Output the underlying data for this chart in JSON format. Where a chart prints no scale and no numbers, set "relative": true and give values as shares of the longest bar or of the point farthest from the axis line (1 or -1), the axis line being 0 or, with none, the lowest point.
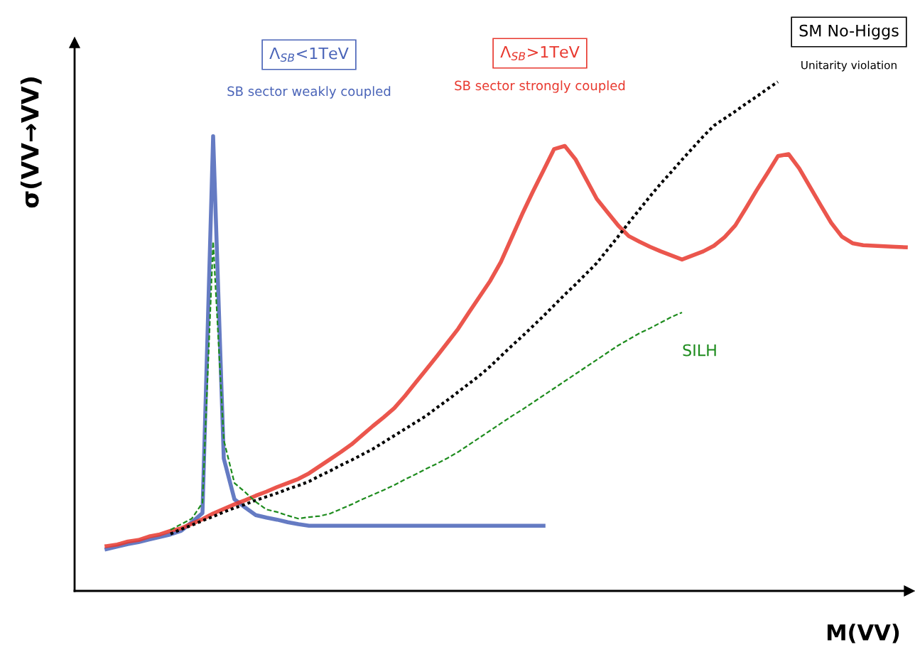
{
  "chart_data": {
    "type": "line",
    "relative": true,
    "xlabel": "M(VV)",
    "ylabel": "σ(VV→VV)",
    "categories": [
      null,
      null,
      null,
      null,
      null,
      null,
      null,
      null,
      null,
      null,
      null,
      null,
      null,
      null,
      null,
      null,
      null,
      null,
      null,
      null,
      null,
      null,
      null,
      null,
      null,
      null,
      null,
      null,
      null,
      null,
      null,
      null,
      null,
      null,
      null,
      null,
      null,
      null,
      null,
      null,
      null,
      null,
      null,
      null,
      null,
      null,
      null,
      null,
      null,
      null,
      null,
      null,
      null,
      null,
      null,
      null,
      null,
      null,
      null,
      null,
      null,
      null,
      null,
      null,
      null,
      null,
      null,
      null,
      null,
      null,
      null,
      null,
      null,
      null,
      null,
      null,
      null,
      null,
      null
    ],
    "series": [
      {
        "name": "Λ$_{SB}$<1TeV",
        "color": "#4a64b8",
        "values": [
          null,
          null,
          null,
          0.082,
          0.087,
          0.092,
          0.096,
          0.101,
          0.106,
          0.111,
          0.118,
          0.135,
          0.153,
          0.893,
          0.26,
          0.18,
          0.164,
          0.149,
          0.144,
          0.14,
          0.135,
          0.131,
          0.128,
          0.128,
          0.128,
          0.128,
          0.128,
          0.128,
          0.128,
          0.128,
          0.128,
          0.128,
          0.128,
          0.128,
          0.128,
          0.128,
          0.128,
          0.128,
          0.128,
          0.128,
          0.128,
          0.128,
          0.128,
          0.128,
          0.128,
          null,
          null,
          null,
          null,
          null,
          null,
          null,
          null,
          null,
          null,
          null,
          null,
          null,
          null,
          null,
          null,
          null,
          null,
          null,
          null,
          null,
          null,
          null,
          null,
          null,
          null,
          null,
          null,
          null,
          null,
          null,
          null,
          null,
          null
        ]
      },
      {
        "name": "Λ$_{SB}$>1TeV",
        "color": "#e8382e",
        "values": [
          null,
          null,
          null,
          0.088,
          0.091,
          0.097,
          0.1,
          0.107,
          0.111,
          0.118,
          0.123,
          0.132,
          0.141,
          0.152,
          0.161,
          0.17,
          0.178,
          0.187,
          0.195,
          0.204,
          0.212,
          0.22,
          0.231,
          0.245,
          0.259,
          0.273,
          0.288,
          0.306,
          0.324,
          0.341,
          0.359,
          0.383,
          0.409,
          0.435,
          0.461,
          0.488,
          0.515,
          0.547,
          0.578,
          0.609,
          0.646,
          0.693,
          0.74,
          0.784,
          0.826,
          0.868,
          0.874,
          0.848,
          0.809,
          0.77,
          0.744,
          0.718,
          0.697,
          0.686,
          0.676,
          0.667,
          0.659,
          0.651,
          0.659,
          0.667,
          0.678,
          0.695,
          0.718,
          0.752,
          0.787,
          0.82,
          0.854,
          0.858,
          0.83,
          0.794,
          0.758,
          0.723,
          0.696,
          0.683,
          0.679,
          0.678,
          0.677,
          0.676,
          0.675
        ]
      },
      {
        "name": "SM No-Higgs",
        "color": "#000000",
        "line_style": "dotted",
        "values": [
          null,
          null,
          null,
          null,
          null,
          null,
          null,
          null,
          null,
          0.112,
          0.121,
          0.129,
          0.138,
          0.146,
          0.155,
          0.163,
          0.17,
          0.178,
          0.185,
          0.192,
          0.2,
          0.207,
          0.215,
          0.226,
          0.236,
          0.247,
          0.257,
          0.268,
          0.279,
          0.292,
          0.305,
          0.318,
          0.331,
          0.344,
          0.36,
          0.375,
          0.391,
          0.407,
          0.423,
          0.441,
          0.461,
          0.481,
          0.5,
          0.52,
          0.54,
          0.561,
          0.582,
          0.602,
          0.623,
          0.644,
          0.67,
          0.696,
          0.723,
          0.749,
          0.775,
          0.8,
          0.823,
          0.847,
          0.87,
          0.893,
          0.914,
          0.928,
          0.942,
          0.957,
          0.971,
          0.986,
          1.0,
          null,
          null,
          null,
          null,
          null,
          null,
          null,
          null,
          null,
          null,
          null,
          null
        ]
      },
      {
        "name": "SILH",
        "color": "#1e8c1e",
        "line_style": "dashed",
        "values": [
          null,
          null,
          null,
          null,
          null,
          null,
          null,
          null,
          null,
          0.12,
          0.131,
          0.142,
          0.173,
          0.686,
          0.296,
          0.212,
          0.194,
          0.175,
          0.16,
          0.155,
          0.148,
          0.142,
          0.145,
          0.147,
          0.152,
          0.161,
          0.17,
          0.18,
          0.189,
          0.198,
          0.208,
          0.219,
          0.229,
          0.24,
          0.25,
          0.261,
          0.273,
          0.287,
          0.301,
          0.315,
          0.329,
          0.343,
          0.356,
          0.37,
          0.384,
          0.398,
          0.412,
          0.426,
          0.44,
          0.454,
          0.468,
          0.482,
          0.494,
          0.506,
          0.516,
          0.527,
          0.538,
          0.547,
          null,
          null,
          null,
          null,
          null,
          null,
          null,
          null,
          null,
          null,
          null,
          null,
          null,
          null,
          null,
          null,
          null,
          null,
          null,
          null,
          null
        ]
      }
    ],
    "annotations": [
      "SB sector weakly coupled",
      "SB sector strongly coupled",
      "Unitarity violation"
    ]
  }
}
